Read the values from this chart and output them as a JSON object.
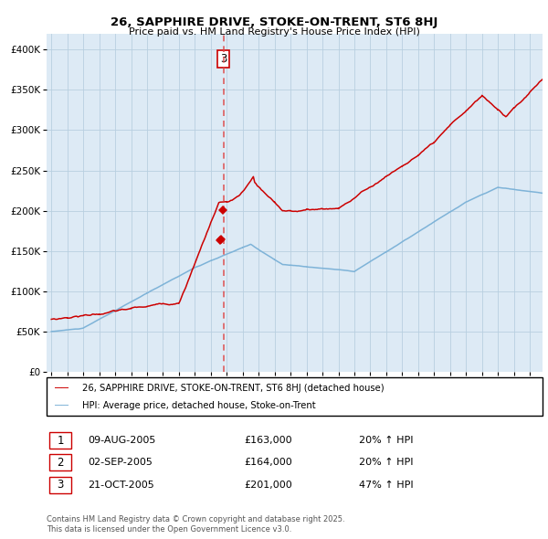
{
  "title": "26, SAPPHIRE DRIVE, STOKE-ON-TRENT, ST6 8HJ",
  "subtitle": "Price paid vs. HM Land Registry's House Price Index (HPI)",
  "legend_line1": "26, SAPPHIRE DRIVE, STOKE-ON-TRENT, ST6 8HJ (detached house)",
  "legend_line2": "HPI: Average price, detached house, Stoke-on-Trent",
  "transactions": [
    {
      "id": 1,
      "date": "09-AUG-2005",
      "price": 163000,
      "pct": "20%",
      "dir": "↑"
    },
    {
      "id": 2,
      "date": "02-SEP-2005",
      "price": 164000,
      "pct": "20%",
      "dir": "↑"
    },
    {
      "id": 3,
      "date": "21-OCT-2005",
      "price": 201000,
      "pct": "47%",
      "dir": "↑"
    }
  ],
  "footnote1": "Contains HM Land Registry data © Crown copyright and database right 2025.",
  "footnote2": "This data is licensed under the Open Government Licence v3.0.",
  "red_color": "#cc0000",
  "blue_color": "#7eb3d8",
  "bg_color": "#ddeaf5",
  "grid_color": "#b8cfe0",
  "vline_color": "#dd4444",
  "yticks": [
    0,
    50000,
    100000,
    150000,
    200000,
    250000,
    300000,
    350000,
    400000
  ],
  "ylim": [
    0,
    420000
  ],
  "xlim_left": 1994.7,
  "xlim_right": 2025.8
}
